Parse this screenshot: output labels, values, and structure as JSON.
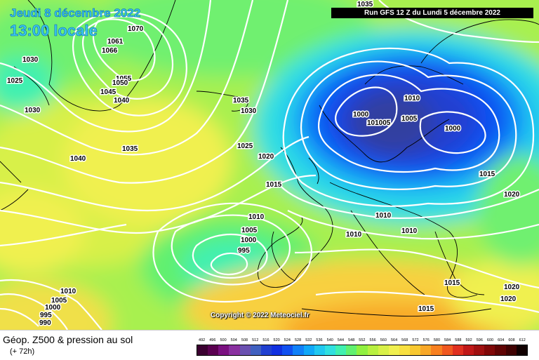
{
  "header": {
    "date": "Jeudi 8 décembre 2022",
    "local_time": "13:00 locale",
    "run": "Run GFS 12 Z du Lundi 5 décembre 2022"
  },
  "copyright": "Copyright © 2022 Meteociel.fr",
  "footer": {
    "title": "Géop. Z500 & pression au sol",
    "subtitle": "(+ 72h)"
  },
  "color_scale": {
    "labels": [
      "492",
      "496",
      "500",
      "504",
      "508",
      "512",
      "516",
      "520",
      "524",
      "528",
      "532",
      "536",
      "540",
      "544",
      "548",
      "552",
      "556",
      "560",
      "564",
      "568",
      "572",
      "576",
      "580",
      "584",
      "588",
      "592",
      "596",
      "600",
      "604",
      "608",
      "612"
    ],
    "colors": [
      "#3a0030",
      "#5a0050",
      "#7a1080",
      "#8a30a0",
      "#6a50b0",
      "#4060c0",
      "#2040d0",
      "#1030e0",
      "#1050f0",
      "#1080f8",
      "#10a8f8",
      "#20c8f0",
      "#30e0e0",
      "#40f0b0",
      "#60f070",
      "#90f040",
      "#b8f040",
      "#d8f048",
      "#f0f050",
      "#f8e040",
      "#f8c830",
      "#f8a828",
      "#f88020",
      "#f05820",
      "#e03020",
      "#c01818",
      "#a01010",
      "#800808",
      "#600404",
      "#400202",
      "#100000"
    ]
  },
  "isobars": [
    {
      "label": "1070"
    },
    {
      "label": "1061"
    },
    {
      "label": "1066"
    },
    {
      "label": "1030"
    },
    {
      "label": "1025"
    },
    {
      "label": "1055"
    },
    {
      "label": "1050"
    },
    {
      "label": "1045"
    },
    {
      "label": "1040"
    },
    {
      "label": "1030"
    },
    {
      "label": "1035"
    },
    {
      "label": "1040"
    },
    {
      "label": "1035"
    },
    {
      "label": "1030"
    },
    {
      "label": "1025"
    },
    {
      "label": "1020"
    },
    {
      "label": "1015"
    },
    {
      "label": "1035"
    },
    {
      "label": "1000"
    },
    {
      "label": "101005"
    },
    {
      "label": "1005"
    },
    {
      "label": "1010"
    },
    {
      "label": "1000"
    },
    {
      "label": "1015"
    },
    {
      "label": "1020"
    },
    {
      "label": "1010"
    },
    {
      "label": "1005"
    },
    {
      "label": "1000"
    },
    {
      "label": "995"
    },
    {
      "label": "1010"
    },
    {
      "label": "1010"
    },
    {
      "label": "1010"
    },
    {
      "label": "1015"
    },
    {
      "label": "1020"
    },
    {
      "label": "1020"
    },
    {
      "label": "1015"
    },
    {
      "label": "1010"
    },
    {
      "label": "1005"
    },
    {
      "label": "1000"
    },
    {
      "label": "995"
    },
    {
      "label": "990"
    }
  ]
}
